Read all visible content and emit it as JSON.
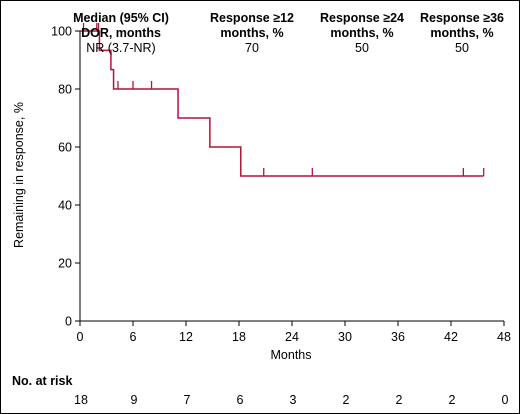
{
  "chart_data": {
    "type": "line",
    "xlabel": "Months",
    "ylabel": "Remaining in response, %",
    "xlim": [
      0,
      48
    ],
    "ylim": [
      0,
      100
    ],
    "xticks": [
      0,
      6,
      12,
      18,
      24,
      30,
      36,
      42,
      48
    ],
    "yticks": [
      0,
      20,
      40,
      60,
      80,
      100
    ],
    "grid": false,
    "color": "#b5123a",
    "series": [
      {
        "steps": [
          [
            0,
            100
          ],
          [
            2.2,
            93.3
          ],
          [
            3.5,
            86.7
          ],
          [
            3.8,
            80
          ],
          [
            11.1,
            70
          ],
          [
            14.7,
            60
          ],
          [
            18.2,
            50
          ],
          [
            45.7,
            50
          ]
        ],
        "censor_marks": [
          [
            0.4,
            100
          ],
          [
            1.9,
            100
          ],
          [
            2.1,
            100
          ],
          [
            4.3,
            80
          ],
          [
            6.0,
            80
          ],
          [
            8.1,
            80
          ],
          [
            20.8,
            50
          ],
          [
            26.3,
            50
          ],
          [
            43.4,
            50
          ],
          [
            45.7,
            50
          ]
        ]
      }
    ],
    "header": [
      {
        "bold": "Median (95% CI)",
        "bold2": "DOR, months",
        "plain": "NR (3.7-NR)"
      },
      {
        "bold": "Response ≥12",
        "bold2": "months, %",
        "plain": "70"
      },
      {
        "bold": "Response ≥24",
        "bold2": "months, %",
        "plain": "50"
      },
      {
        "bold": "Response ≥36",
        "bold2": "months, %",
        "plain": "50"
      }
    ],
    "risk_table": {
      "title": "No. at risk",
      "months": [
        0,
        6,
        12,
        18,
        24,
        30,
        36,
        42,
        48
      ],
      "counts": [
        "18",
        "9",
        "7",
        "6",
        "3",
        "2",
        "2",
        "2",
        "0"
      ]
    }
  }
}
